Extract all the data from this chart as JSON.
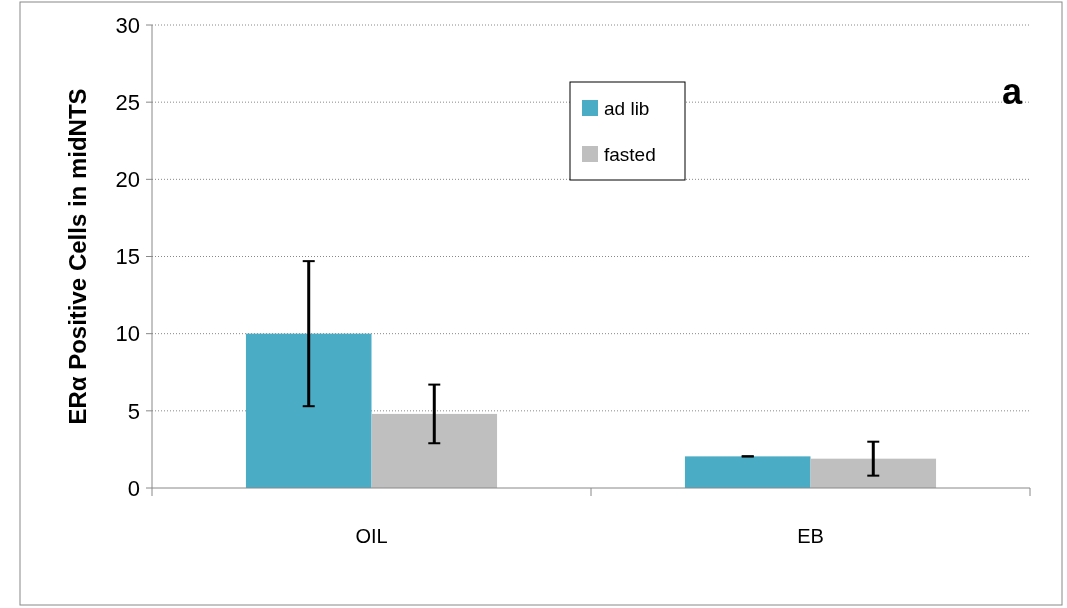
{
  "chart_data": {
    "type": "bar",
    "ylabel": "ERα Positive Cells in midNTS",
    "categories": [
      "OIL",
      "EB"
    ],
    "series": [
      {
        "name": "ad lib",
        "color": "#4bacc6",
        "values": [
          10,
          2.05
        ],
        "errors": [
          4.7,
          0
        ]
      },
      {
        "name": "fasted",
        "color": "#bfbfbf",
        "values": [
          4.8,
          1.9
        ],
        "errors": [
          1.9,
          1.1
        ]
      }
    ],
    "ylim": [
      0,
      30
    ],
    "yticks": [
      0,
      5,
      10,
      15,
      20,
      25,
      30
    ],
    "grid": "y",
    "legend": "top right",
    "annotations": [
      "a"
    ]
  }
}
